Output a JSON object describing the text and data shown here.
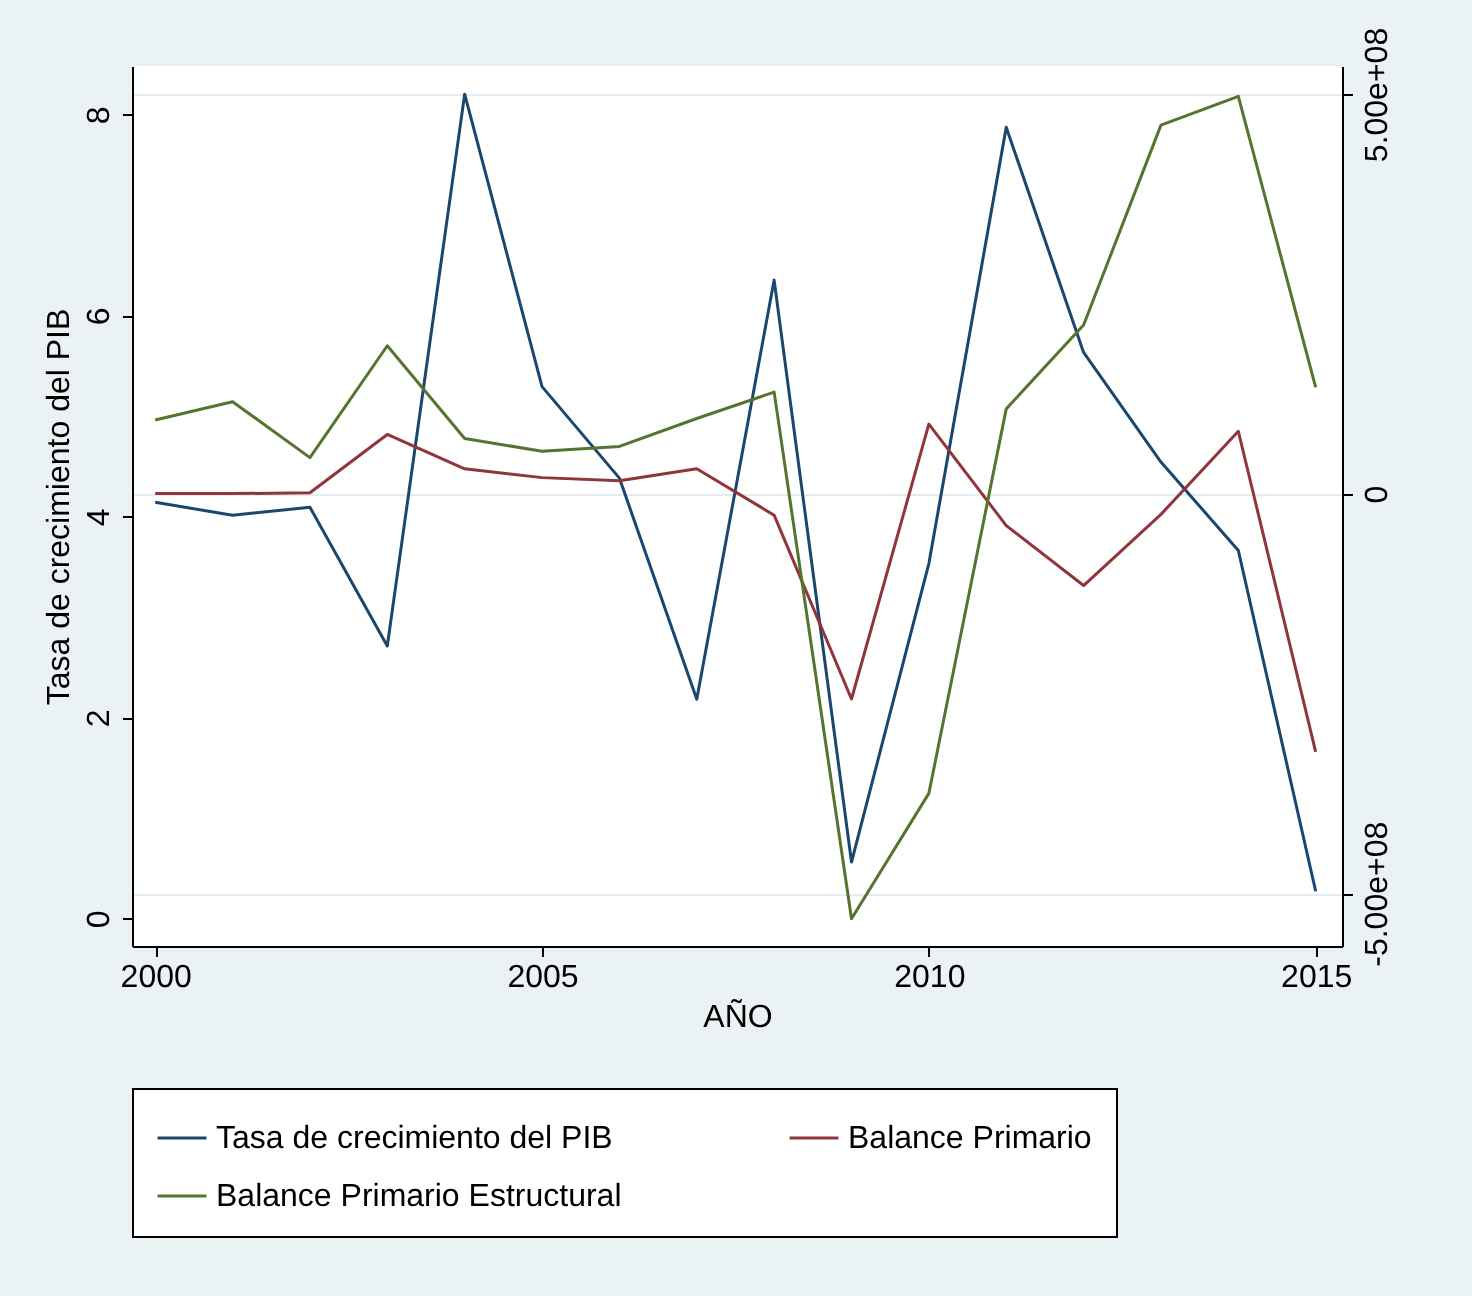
{
  "chart_data": {
    "type": "line",
    "xlabel": "AÑO",
    "ylabel": "Tasa de crecimiento del PIB",
    "x": [
      2000,
      2001,
      2002,
      2003,
      2004,
      2005,
      2006,
      2007,
      2008,
      2009,
      2010,
      2011,
      2012,
      2013,
      2014,
      2015
    ],
    "series": [
      {
        "name": "Tasa de crecimiento del PIB",
        "color": "#1a476f",
        "values": [
          4.14,
          4.01,
          4.09,
          2.71,
          8.2,
          5.29,
          4.38,
          2.18,
          6.35,
          0.56,
          3.53,
          7.87,
          5.63,
          4.54,
          3.66,
          0.27
        ]
      },
      {
        "name": "Balance Primario",
        "color": "#90353b",
        "axis": "y2",
        "values": [
          0,
          0,
          1000000,
          74000000,
          31000000,
          20000000,
          16000000,
          31000000,
          -27000000,
          -257000000,
          87000000,
          -40000000,
          -115000000,
          -26000000,
          78000000,
          -323000000
        ]
      },
      {
        "name": "Balance Primario Estructural",
        "color": "#55752f",
        "axis": "y2",
        "values": [
          92000000,
          115000000,
          45000000,
          185000000,
          69000000,
          53000000,
          59000000,
          94000000,
          127000000,
          -532000000,
          -375000000,
          106000000,
          211000000,
          461000000,
          497000000,
          133000000
        ]
      }
    ],
    "xlim": [
      1999.7,
      2015.34
    ],
    "xticks": [
      2000,
      2005,
      2010,
      2015
    ],
    "ylim": [
      -0.275,
      8.48
    ],
    "yticks": [
      0,
      2,
      4,
      6,
      8
    ],
    "y2lim": [
      -566000000,
      535000000
    ],
    "y2ticks": [
      {
        "value": -500000000,
        "label": "-5.00e+08"
      },
      0,
      {
        "value": 500000000,
        "label": "5.00e+08"
      }
    ],
    "grid": "y2",
    "legend": "bottom",
    "line_style": "solid",
    "marker": "none"
  }
}
